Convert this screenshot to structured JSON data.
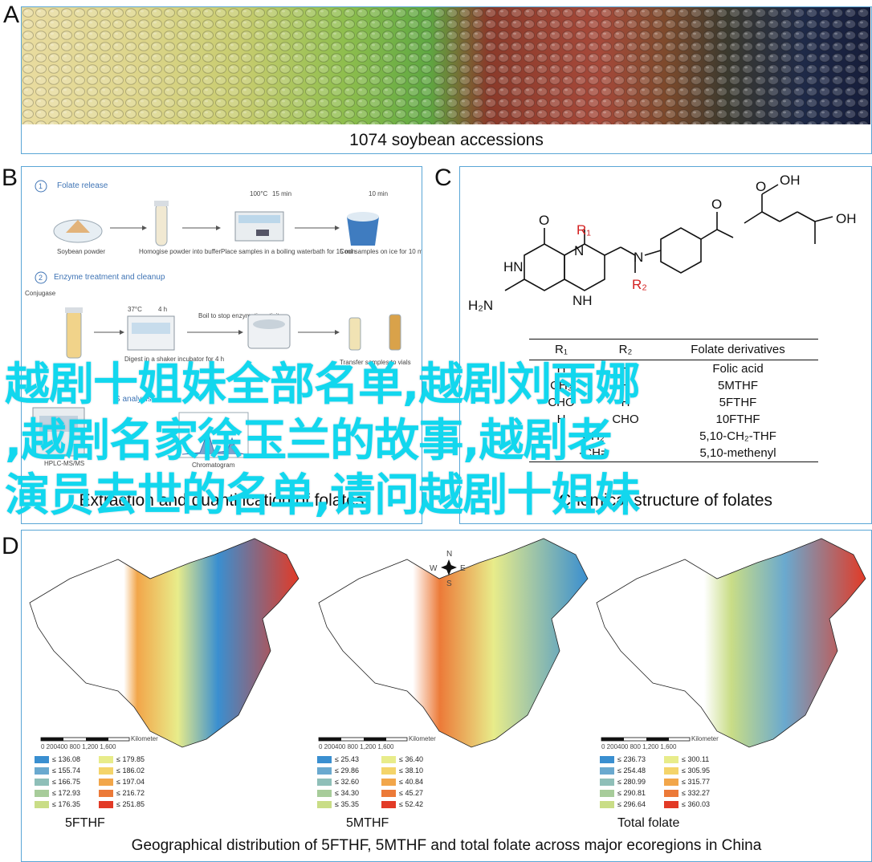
{
  "panels": {
    "a": {
      "letter": "A",
      "caption": "1074 soybean accessions"
    },
    "b": {
      "letter": "B",
      "step1": {
        "num": "1",
        "title": "Folate release",
        "labels": [
          "Soybean powder",
          "Homogise powder into buffer",
          "Place samples in a boiling waterbath for 15 min",
          "Cool samples on ice for 10 min"
        ],
        "temp": "100°C",
        "time1": "15 min",
        "time2": "10 min"
      },
      "step2": {
        "num": "2",
        "title": "Enzyme treatment and cleanup",
        "labels": [
          "Conjugase",
          "Digest in a shaker incubator for 4 h",
          "Boil to stop enzymatic activity",
          "Transfer samples to vials"
        ],
        "temp": "37°C",
        "time": "4 h"
      },
      "step3": {
        "label_left": "HPLC-MS/MS",
        "label_right": "Chromatogram",
        "title_fragment": "S analysis"
      },
      "caption": "Extraction and quantification of folates"
    },
    "c": {
      "letter": "C",
      "atoms": {
        "oh1": "OH",
        "oh2": "OH",
        "o1": "O",
        "o2": "O",
        "o3": "O",
        "hn": "HN",
        "nh": "NH",
        "n": "N",
        "h2n": "H₂N",
        "r1": "R₁",
        "r2": "R₂"
      },
      "table": {
        "headers": [
          "R₁",
          "R₂",
          "Folate derivatives"
        ],
        "rows": [
          [
            "H",
            "H",
            "Folic acid"
          ],
          [
            "CH₃",
            "H",
            "5MTHF"
          ],
          [
            "CHO",
            "H",
            "5FTHF"
          ],
          [
            "H",
            "CHO",
            "10FTHF"
          ],
          [
            "-CH₂-",
            "",
            "5,10-CH₂-THF"
          ],
          [
            "-CH=",
            "",
            "5,10-methenyl"
          ]
        ]
      },
      "caption": "Chemical structure of folates"
    },
    "d": {
      "letter": "D",
      "caption": "Geographical distribution of 5FTHF, 5MTHF and total folate across major ecoregions in China",
      "compass": {
        "n": "N",
        "s": "S",
        "e": "E",
        "w": "W"
      },
      "scale": {
        "ticks": "0 200400   800   1,200   1,600",
        "unit": "Kilometer"
      },
      "maps": [
        {
          "name": "5FTHF",
          "legend": [
            "≤ 136.08",
            "≤ 155.74",
            "≤ 166.75",
            "≤ 172.93",
            "≤ 176.35",
            "≤ 179.85",
            "≤ 186.02",
            "≤ 197.04",
            "≤ 216.72",
            "≤ 251.85"
          ]
        },
        {
          "name": "5MTHF",
          "legend": [
            "≤ 25.43",
            "≤ 29.86",
            "≤ 32.60",
            "≤ 34.30",
            "≤ 35.35",
            "≤ 36.40",
            "≤ 38.10",
            "≤ 40.84",
            "≤ 45.27",
            "≤ 52.42"
          ]
        },
        {
          "name": "Total folate",
          "legend": [
            "≤ 236.73",
            "≤ 254.48",
            "≤ 280.99",
            "≤ 290.81",
            "≤ 296.64",
            "≤ 300.11",
            "≤ 305.95",
            "≤ 315.77",
            "≤ 332.27",
            "≤ 360.03"
          ]
        }
      ],
      "legend_colors": [
        "#3a8fd0",
        "#6aa9cf",
        "#8fbfb8",
        "#a7cc9a",
        "#c9dd86",
        "#e8ec8a",
        "#f4d46a",
        "#f2a64a",
        "#ec7a38",
        "#e23a26"
      ]
    }
  },
  "overlay": {
    "line1": "越剧十姐妹全部名单,越剧刘雨娜",
    "line2": ",越剧名家徐玉兰的故事,越剧老",
    "line3": "演员去世的名单,请问越剧十姐妹"
  }
}
